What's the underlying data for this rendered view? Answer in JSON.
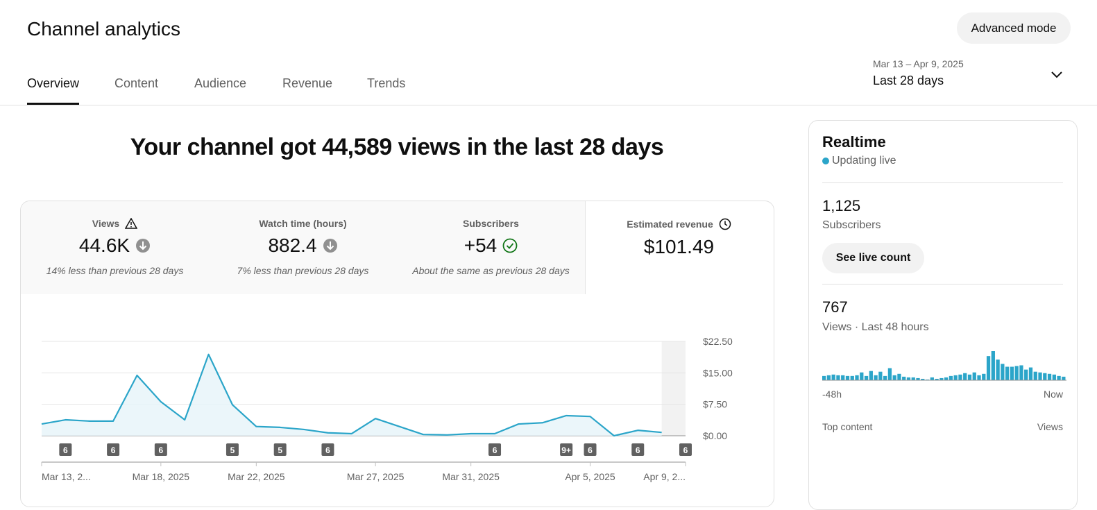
{
  "header": {
    "title": "Channel analytics",
    "advanced_button": "Advanced mode"
  },
  "tabs": {
    "items": [
      "Overview",
      "Content",
      "Audience",
      "Revenue",
      "Trends"
    ],
    "active": 0
  },
  "date_range": {
    "range": "Mar 13 – Apr 9, 2025",
    "label": "Last 28 days"
  },
  "headline": "Your channel got 44,589 views in the last 28 days",
  "metrics": [
    {
      "label": "Views",
      "value": "44.6K",
      "note": "14% less than previous 28 days"
    },
    {
      "label": "Watch time (hours)",
      "value": "882.4",
      "note": "7% less than previous 28 days"
    },
    {
      "label": "Subscribers",
      "value": "+54",
      "note": "About the same as previous 28 days"
    },
    {
      "label": "Estimated revenue",
      "value": "$101.49"
    }
  ],
  "chart": {
    "type": "line",
    "color": "#2ba5c9",
    "categories": [
      "Mar 13, 2...",
      null,
      null,
      null,
      null,
      "Mar 18, 2025",
      null,
      null,
      null,
      "Mar 22, 2025",
      null,
      null,
      null,
      null,
      "Mar 27, 2025",
      null,
      null,
      null,
      "Mar 31, 2025",
      null,
      null,
      null,
      null,
      "Apr 5, 2025",
      null,
      null,
      null,
      "Apr 9, 2..."
    ],
    "values": [
      2.8,
      3.8,
      3.5,
      3.5,
      14.4,
      8.1,
      3.8,
      19.4,
      7.4,
      2.2,
      2.0,
      1.5,
      0.7,
      0.5,
      4.1,
      2.2,
      0.3,
      0.2,
      0.5,
      0.5,
      2.8,
      3.1,
      4.8,
      4.6,
      0.0,
      1.3,
      0.8,
      null
    ],
    "uploads": [
      null,
      "6",
      null,
      "6",
      null,
      "6",
      null,
      null,
      "5",
      null,
      "5",
      null,
      "6",
      null,
      null,
      null,
      null,
      null,
      null,
      "6",
      null,
      null,
      "9+",
      "6",
      null,
      "6",
      null,
      "6"
    ],
    "ylim": [
      0,
      22.5
    ],
    "yticks": [
      {
        "value": 0,
        "label": "$0.00"
      },
      {
        "value": 7.5,
        "label": "$7.50"
      },
      {
        "value": 15,
        "label": "$15.00"
      },
      {
        "value": 22.5,
        "label": "$22.50"
      }
    ],
    "grid": true
  },
  "realtime": {
    "title": "Realtime",
    "status": "Updating live",
    "subscribers": "1,125",
    "subscribers_label": "Subscribers",
    "button": "See live count",
    "views": "767",
    "views_label": "Views · Last 48 hours",
    "views_chart": {
      "type": "bar",
      "color": "#2ba5c9",
      "values": [
        6,
        7,
        8,
        7,
        7,
        6,
        6,
        7,
        11,
        6,
        13,
        7,
        12,
        6,
        17,
        7,
        9,
        5,
        4,
        4,
        3,
        2,
        1,
        4,
        2,
        3,
        4,
        6,
        7,
        8,
        10,
        8,
        11,
        7,
        9,
        34,
        41,
        29,
        23,
        19,
        19,
        20,
        21,
        15,
        18,
        12,
        11,
        10,
        9,
        8,
        6,
        5
      ],
      "start_label": "-48h",
      "end_label": "Now"
    },
    "top_content": "Top content",
    "top_content_metric": "Views"
  }
}
